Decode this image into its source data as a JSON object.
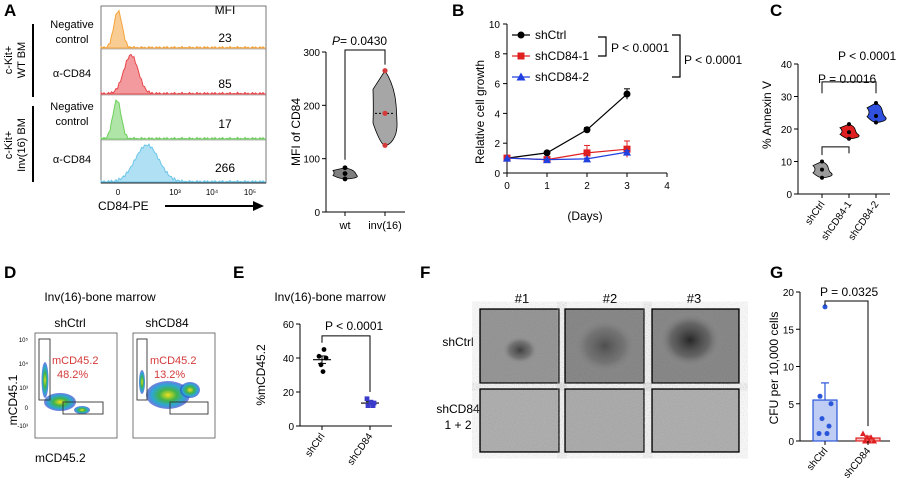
{
  "panels": {
    "A": {
      "letter": "A",
      "mfi_header": "MFI",
      "group1_label": [
        "c-Kit+",
        "WT BM"
      ],
      "group2_label": [
        "c-Kit+",
        "Inv(16) BM"
      ],
      "rows": [
        {
          "label": [
            "Negative",
            "control"
          ],
          "mfi": "23",
          "color": "#f3a33b"
        },
        {
          "label": [
            "α-CD84"
          ],
          "mfi": "85",
          "color": "#e8474c"
        },
        {
          "label": [
            "Negative",
            "control"
          ],
          "mfi": "17",
          "color": "#6dd05c"
        },
        {
          "label": [
            "α-CD84"
          ],
          "mfi": "266",
          "color": "#6ec6ea"
        }
      ],
      "xaxis_label": "CD84-PE",
      "xaxis_ticks": [
        "0",
        "10³",
        "10⁴",
        "10⁵"
      ]
    },
    "A2": {
      "ylabel": "MFI of CD84",
      "pvalue_prefix": "P",
      "pvalue_text": " = 0.0430",
      "ylim": [
        0,
        300
      ],
      "yticks": [
        "0",
        "100",
        "200",
        "300"
      ],
      "categories": [
        "wt",
        "inv(16)"
      ],
      "wt_points": [
        62,
        72,
        83
      ],
      "inv_points": [
        125,
        185,
        265
      ],
      "wt_color": "#7f7f7f",
      "inv_color": "#a6a6a6",
      "point_color": "#d43a3a"
    },
    "B": {
      "letter": "B",
      "ylabel": "Relative cell growth",
      "xlabel": "(Days)",
      "xticks": [
        "0",
        "1",
        "2",
        "3",
        "4"
      ],
      "yticks": [
        "0",
        "2",
        "4",
        "6",
        "8",
        "10"
      ],
      "legend": [
        "shCtrl",
        "shCD84-1",
        "shCD84-2"
      ],
      "pvalue1": "P < 0.0001",
      "pvalue2": "P < 0.0001"
    },
    "C": {
      "letter": "C",
      "ylabel": "% Annexin V",
      "yticks": [
        "0",
        "10",
        "20",
        "30",
        "40"
      ],
      "categories": [
        "shCtrl",
        "shCD84-1",
        "shCD84-2"
      ],
      "pvalue1": "P = 0.0016",
      "pvalue2": "P < 0.0001"
    },
    "D": {
      "letter": "D",
      "title": "Inv(16)-bone marrow",
      "plot1_title": "shCtrl",
      "plot2_title": "shCD84",
      "gate1_label": "mCD45.2",
      "gate1_value": "48.2%",
      "gate2_label": "mCD45.2",
      "gate2_value": "13.2%",
      "ylabel": "mCD45.1",
      "xlabel": "mCD45.2",
      "yticks": [
        "10⁵",
        "10⁴",
        "10³",
        "0",
        "-10³"
      ]
    },
    "E": {
      "letter": "E",
      "title": "Inv(16)-bone marrow",
      "ylabel": "%mCD45.2",
      "yticks": [
        "0",
        "20",
        "40",
        "60"
      ],
      "categories": [
        "shCtrl",
        "shCD84"
      ],
      "pvalue": "P < 0.0001"
    },
    "F": {
      "letter": "F",
      "columns": [
        "#1",
        "#2",
        "#3"
      ],
      "row1_label": "shCtrl",
      "row2_label": [
        "shCD84",
        "1 + 2"
      ]
    },
    "G": {
      "letter": "G",
      "ylabel": "CFU per 10,000 cells",
      "yticks": [
        "0",
        "5",
        "10",
        "15",
        "20"
      ],
      "categories": [
        "shCtrl",
        "shCD84"
      ],
      "pvalue": "P = 0.0325"
    }
  },
  "chart_data": [
    {
      "type": "scatter",
      "panel": "B",
      "xlabel": "(Days)",
      "ylabel": "Relative cell growth",
      "xlim": [
        0,
        4
      ],
      "ylim": [
        0,
        10
      ],
      "series": [
        {
          "name": "shCtrl",
          "x": [
            0,
            1,
            2,
            3
          ],
          "y": [
            1.0,
            1.35,
            2.9,
            5.3
          ],
          "err": [
            0,
            0.05,
            0.15,
            0.35
          ],
          "color": "#000000",
          "marker": "circle"
        },
        {
          "name": "shCD84-1",
          "x": [
            0,
            1,
            2,
            3
          ],
          "y": [
            1.0,
            0.9,
            1.35,
            1.6
          ],
          "err": [
            0,
            0.05,
            0.5,
            0.55
          ],
          "color": "#e02020",
          "marker": "square"
        },
        {
          "name": "shCD84-2",
          "x": [
            0,
            1,
            2,
            3
          ],
          "y": [
            1.0,
            0.9,
            0.95,
            1.4
          ],
          "err": [
            0,
            0.03,
            0.05,
            0.1
          ],
          "color": "#2040e0",
          "marker": "triangle"
        }
      ]
    },
    {
      "type": "violin",
      "panel": "C",
      "ylabel": "% Annexin V",
      "ylim": [
        0,
        40
      ],
      "categories": [
        "shCtrl",
        "shCD84-1",
        "shCD84-2"
      ],
      "series": [
        {
          "name": "shCtrl",
          "points": [
            5,
            7.5,
            10
          ],
          "color": "#9a9a9a"
        },
        {
          "name": "shCD84-1",
          "points": [
            17,
            19,
            21.5
          ],
          "color": "#e02020"
        },
        {
          "name": "shCD84-2",
          "points": [
            22,
            24,
            28
          ],
          "color": "#3050e0"
        }
      ]
    },
    {
      "type": "scatter",
      "panel": "E",
      "ylabel": "%mCD45.2",
      "ylim": [
        0,
        60
      ],
      "categories": [
        "shCtrl",
        "shCD84"
      ],
      "series": [
        {
          "name": "shCtrl",
          "points": [
            45,
            41,
            40,
            36,
            32
          ],
          "mean": 39,
          "sem": 2.2,
          "color": "#000000"
        },
        {
          "name": "shCD84",
          "points": [
            16,
            14,
            13.5,
            12,
            12
          ],
          "mean": 13.5,
          "sem": 0.8,
          "color": "#3a3acb"
        }
      ]
    },
    {
      "type": "bar",
      "panel": "G",
      "ylabel": "CFU per 10,000 cells",
      "ylim": [
        0,
        20
      ],
      "categories": [
        "shCtrl",
        "shCD84"
      ],
      "values": [
        5.5,
        0.4
      ],
      "err": [
        2.3,
        0.25
      ],
      "points": [
        [
          18,
          6,
          5,
          3,
          2,
          1,
          1
        ],
        [
          1,
          0.5,
          0.5,
          0,
          0,
          0
        ]
      ],
      "colors": [
        "#2a56d9",
        "#e02020"
      ]
    }
  ]
}
